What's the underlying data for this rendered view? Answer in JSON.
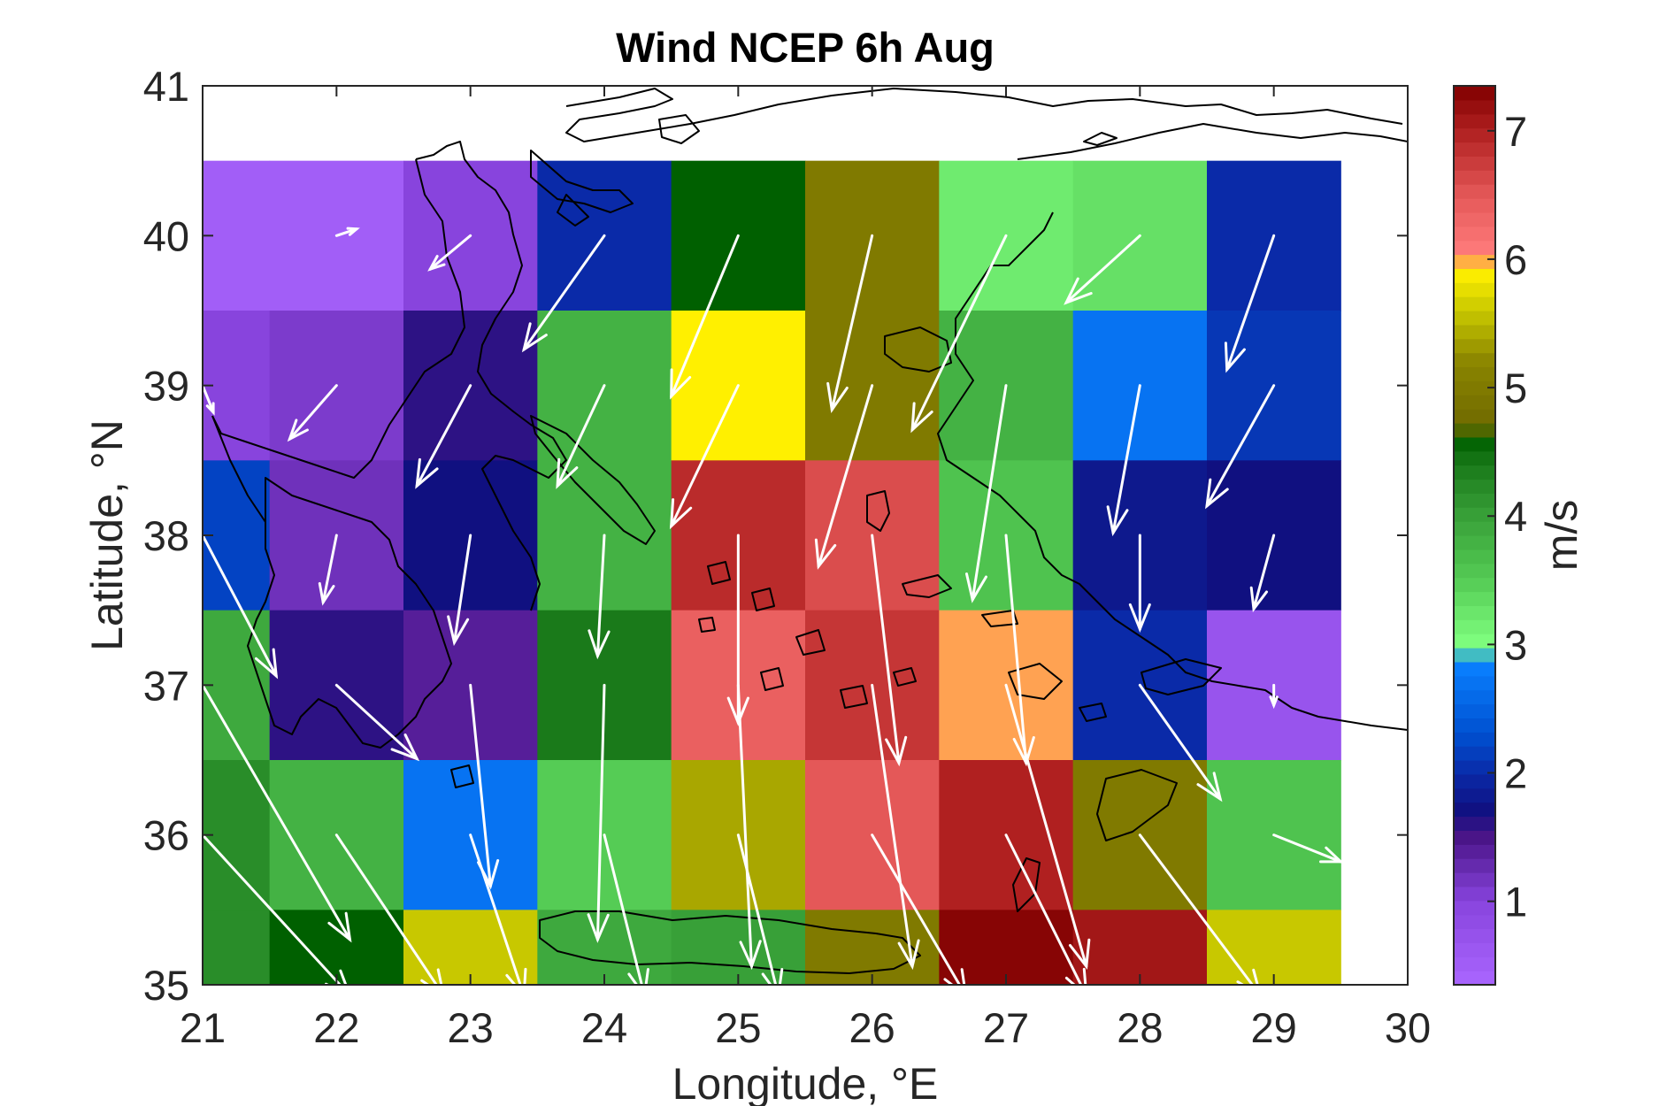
{
  "chart_data": {
    "type": "heatmap",
    "title": "Wind NCEP 6h Aug",
    "xlabel": "Longitude, °E",
    "ylabel": "Latitude, °N",
    "colorbar_label": "m/s",
    "xlim": [
      21,
      30
    ],
    "ylim": [
      35,
      41
    ],
    "xticks": [
      21,
      22,
      23,
      24,
      25,
      26,
      27,
      28,
      29,
      30
    ],
    "yticks": [
      35,
      36,
      37,
      38,
      39,
      40,
      41
    ],
    "colorbar_ticks": [
      1,
      2,
      3,
      4,
      5,
      6,
      7
    ],
    "colorbar_range": [
      0.35,
      7.35
    ],
    "grid": false,
    "colorbar_placement": "right",
    "cell_size_deg": [
      1,
      1
    ],
    "cell_lon_edges": [
      21,
      21.5,
      22.5,
      23.5,
      24.5,
      25.5,
      26.5,
      27.5,
      28.5,
      29.5
    ],
    "cell_lat_edges": [
      35,
      35.5,
      36.5,
      37.5,
      38.5,
      39.5,
      40.5
    ],
    "speed_grid_rows_from_north": [
      [
        0.5,
        0.5,
        1.0,
        2.0,
        4.6,
        5.0,
        3.2,
        3.3,
        2.0
      ],
      [
        1.0,
        1.1,
        1.6,
        3.8,
        5.9,
        5.0,
        3.8,
        2.7,
        2.1
      ],
      [
        2.2,
        1.2,
        1.7,
        3.8,
        6.9,
        6.6,
        3.6,
        1.8,
        1.7
      ],
      [
        3.9,
        1.6,
        1.4,
        4.4,
        6.4,
        6.8,
        6.0,
        2.0,
        0.7
      ],
      [
        4.2,
        3.8,
        2.7,
        3.5,
        5.4,
        6.5,
        7.0,
        5.0,
        3.6
      ],
      [
        4.2,
        4.6,
        5.6,
        3.9,
        4.0,
        5.0,
        7.3,
        7.1,
        5.6
      ]
    ],
    "wind_vectors": [
      {
        "lon": 22,
        "lat": 40,
        "u": 0.15,
        "v": 0.05
      },
      {
        "lon": 23,
        "lat": 40,
        "u": -0.3,
        "v": -0.25
      },
      {
        "lon": 24,
        "lat": 40,
        "u": -0.6,
        "v": -0.85
      },
      {
        "lon": 25,
        "lat": 40,
        "u": -0.5,
        "v": -1.2
      },
      {
        "lon": 26,
        "lat": 40,
        "u": -0.3,
        "v": -1.3
      },
      {
        "lon": 27,
        "lat": 40,
        "u": -0.7,
        "v": -1.45
      },
      {
        "lon": 28,
        "lat": 40,
        "u": -0.55,
        "v": -0.5
      },
      {
        "lon": 29,
        "lat": 40,
        "u": -0.35,
        "v": -1.0
      },
      {
        "lon": 21,
        "lat": 39,
        "u": 0.08,
        "v": -0.2
      },
      {
        "lon": 22,
        "lat": 39,
        "u": -0.35,
        "v": -0.4
      },
      {
        "lon": 23,
        "lat": 39,
        "u": -0.4,
        "v": -0.75
      },
      {
        "lon": 24,
        "lat": 39,
        "u": -0.35,
        "v": -0.75
      },
      {
        "lon": 25,
        "lat": 39,
        "u": -0.5,
        "v": -1.05
      },
      {
        "lon": 26,
        "lat": 39,
        "u": -0.4,
        "v": -1.35
      },
      {
        "lon": 27,
        "lat": 39,
        "u": -0.25,
        "v": -1.6
      },
      {
        "lon": 28,
        "lat": 39,
        "u": -0.2,
        "v": -1.1
      },
      {
        "lon": 29,
        "lat": 39,
        "u": -0.5,
        "v": -0.9
      },
      {
        "lon": 21,
        "lat": 38,
        "u": 0.55,
        "v": -1.05
      },
      {
        "lon": 22,
        "lat": 38,
        "u": -0.1,
        "v": -0.5
      },
      {
        "lon": 23,
        "lat": 38,
        "u": -0.12,
        "v": -0.8
      },
      {
        "lon": 24,
        "lat": 38,
        "u": -0.05,
        "v": -0.9
      },
      {
        "lon": 25,
        "lat": 38,
        "u": 0.0,
        "v": -1.4
      },
      {
        "lon": 26,
        "lat": 38,
        "u": 0.2,
        "v": -1.7
      },
      {
        "lon": 27,
        "lat": 38,
        "u": 0.15,
        "v": -1.7
      },
      {
        "lon": 28,
        "lat": 38,
        "u": 0.0,
        "v": -0.7
      },
      {
        "lon": 29,
        "lat": 38,
        "u": -0.15,
        "v": -0.55
      },
      {
        "lon": 21,
        "lat": 37,
        "u": 1.1,
        "v": -1.9
      },
      {
        "lon": 22,
        "lat": 37,
        "u": 0.6,
        "v": -0.55
      },
      {
        "lon": 23,
        "lat": 37,
        "u": 0.15,
        "v": -1.5
      },
      {
        "lon": 24,
        "lat": 37,
        "u": -0.05,
        "v": -1.9
      },
      {
        "lon": 25,
        "lat": 37,
        "u": 0.1,
        "v": -2.1
      },
      {
        "lon": 26,
        "lat": 37,
        "u": 0.3,
        "v": -2.1
      },
      {
        "lon": 27,
        "lat": 37,
        "u": 0.6,
        "v": -2.1
      },
      {
        "lon": 28,
        "lat": 37,
        "u": 0.6,
        "v": -0.85
      },
      {
        "lon": 29,
        "lat": 37,
        "u": 0.0,
        "v": -0.15
      },
      {
        "lon": 21,
        "lat": 36,
        "u": 1.1,
        "v": -1.2
      },
      {
        "lon": 22,
        "lat": 36,
        "u": 0.8,
        "v": -1.2
      },
      {
        "lon": 23,
        "lat": 36,
        "u": 0.4,
        "v": -1.2
      },
      {
        "lon": 24,
        "lat": 36,
        "u": 0.3,
        "v": -1.2
      },
      {
        "lon": 25,
        "lat": 36,
        "u": 0.3,
        "v": -1.2
      },
      {
        "lon": 26,
        "lat": 36,
        "u": 0.7,
        "v": -1.2
      },
      {
        "lon": 27,
        "lat": 36,
        "u": 0.6,
        "v": -1.2
      },
      {
        "lon": 28,
        "lat": 36,
        "u": 0.9,
        "v": -1.2
      },
      {
        "lon": 29,
        "lat": 36,
        "u": 0.5,
        "v": -0.2
      }
    ]
  }
}
